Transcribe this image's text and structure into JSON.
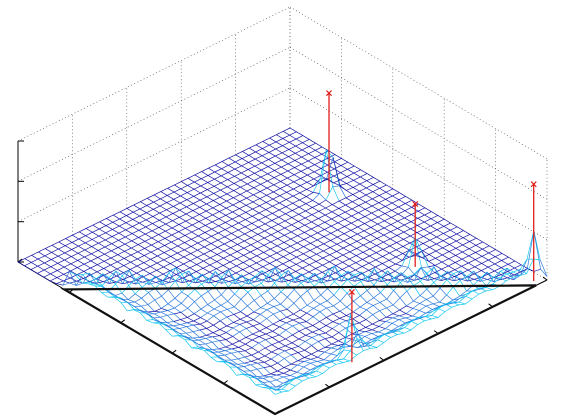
{
  "chart_data": {
    "type": "surface",
    "title": "",
    "xlabel": "",
    "ylabel": "",
    "zlabel": "",
    "grid": true,
    "box": "open-back-panels",
    "colors": {
      "base": "#1a1aa8",
      "mid": "#2f7bdc",
      "high": "#19c8f0",
      "peak": "#e0201b",
      "triangle": "#111111"
    },
    "grid_size": 40,
    "z_range": [
      0,
      1
    ],
    "triangle_vertices": [
      {
        "x": 0.18,
        "y": 0.0
      },
      {
        "x": 1.0,
        "y": 0.0
      },
      {
        "x": 1.0,
        "y": 0.96
      }
    ],
    "peaks": [
      {
        "x": 0.3,
        "y": 0.86,
        "z": 0.82
      },
      {
        "x": 0.72,
        "y": 0.78,
        "z": 0.52
      },
      {
        "x": 0.95,
        "y": 0.33,
        "z": 0.58
      },
      {
        "x": 0.98,
        "y": 0.97,
        "z": 0.8
      }
    ]
  }
}
